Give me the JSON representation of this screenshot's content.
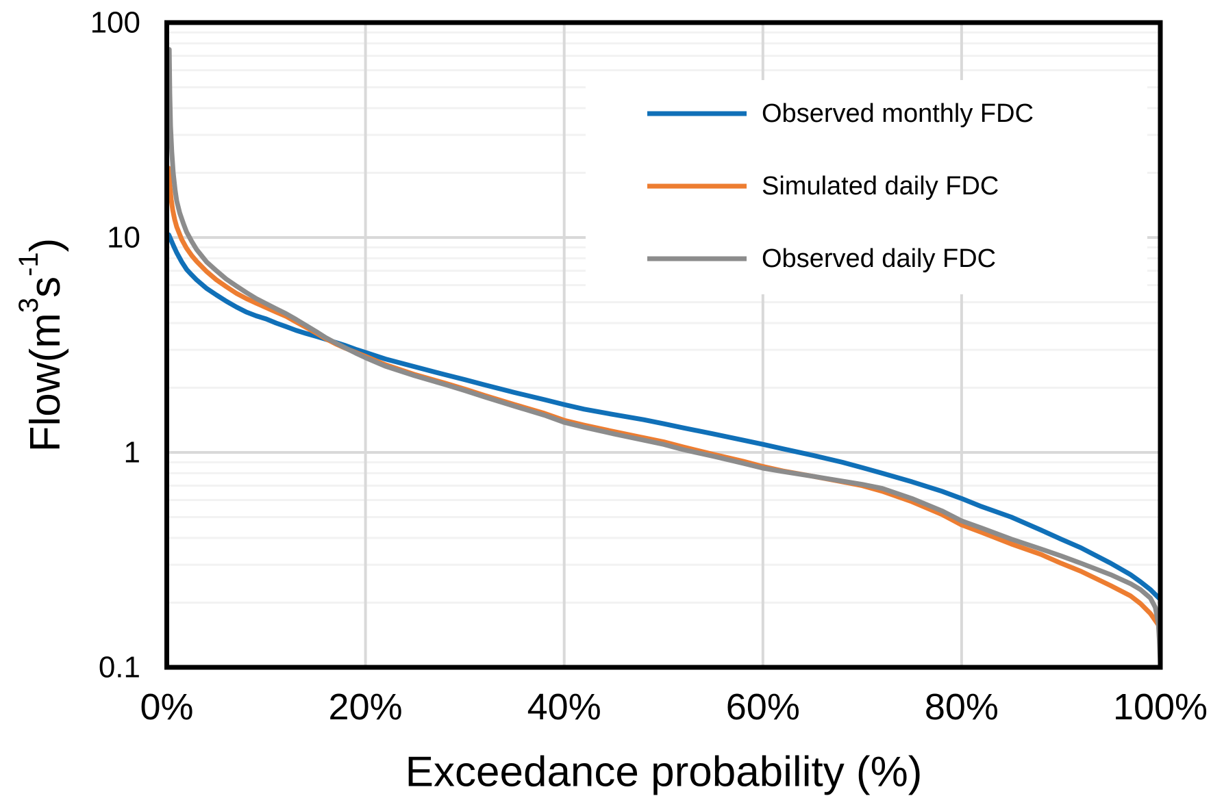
{
  "figure": {
    "background": "#FFFFFF",
    "frame_color": "#000000"
  },
  "chart_data": {
    "type": "line",
    "title": "",
    "x_axis": {
      "title": "Exceedance probability (%)",
      "ticks": [
        "0%",
        "20%",
        "40%",
        "60%",
        "80%",
        "100%"
      ],
      "tick_values": [
        0,
        20,
        40,
        60,
        80,
        100
      ],
      "range": [
        0,
        100
      ],
      "scale": "linear"
    },
    "y_axis": {
      "title": "Flow(m³s⁻¹)",
      "title_parts": [
        {
          "text": "Flow(m",
          "sup": false
        },
        {
          "text": "3",
          "sup": true
        },
        {
          "text": "s",
          "sup": false
        },
        {
          "text": "-1",
          "sup": true
        },
        {
          "text": ")",
          "sup": false
        }
      ],
      "ticks": [
        "100",
        "10",
        "1",
        "0.1"
      ],
      "tick_values": [
        100,
        10,
        1,
        0.1
      ],
      "range": [
        0.1,
        100
      ],
      "scale": "log",
      "minor_gridlines": true
    },
    "grid": {
      "minor_color": "#F2F2F2",
      "major_color": "#D9D9D9",
      "grid_on": true
    },
    "legend": {
      "position": "inside-top-right",
      "background": "#FFFFFF"
    },
    "series": [
      {
        "name": "Observed monthly FDC",
        "color": "#1070B8",
        "points": [
          [
            0.2,
            10.3
          ],
          [
            0.4,
            9.8
          ],
          [
            0.7,
            9.1
          ],
          [
            1,
            8.5
          ],
          [
            1.5,
            7.7
          ],
          [
            2,
            7.1
          ],
          [
            2.5,
            6.7
          ],
          [
            3,
            6.35
          ],
          [
            4,
            5.8
          ],
          [
            5,
            5.4
          ],
          [
            6,
            5.05
          ],
          [
            7,
            4.75
          ],
          [
            8,
            4.5
          ],
          [
            9,
            4.32
          ],
          [
            10,
            4.18
          ],
          [
            11,
            4.0
          ],
          [
            12,
            3.85
          ],
          [
            13,
            3.7
          ],
          [
            14,
            3.58
          ],
          [
            15,
            3.47
          ],
          [
            16,
            3.36
          ],
          [
            17,
            3.25
          ],
          [
            18,
            3.14
          ],
          [
            19,
            3.02
          ],
          [
            20,
            2.92
          ],
          [
            22,
            2.72
          ],
          [
            25,
            2.5
          ],
          [
            28,
            2.3
          ],
          [
            30,
            2.18
          ],
          [
            32,
            2.06
          ],
          [
            35,
            1.9
          ],
          [
            38,
            1.76
          ],
          [
            40,
            1.67
          ],
          [
            42,
            1.59
          ],
          [
            45,
            1.5
          ],
          [
            48,
            1.42
          ],
          [
            50,
            1.36
          ],
          [
            52,
            1.3
          ],
          [
            55,
            1.22
          ],
          [
            58,
            1.14
          ],
          [
            60,
            1.09
          ],
          [
            62,
            1.04
          ],
          [
            65,
            0.97
          ],
          [
            68,
            0.9
          ],
          [
            70,
            0.85
          ],
          [
            72,
            0.8
          ],
          [
            75,
            0.73
          ],
          [
            78,
            0.66
          ],
          [
            80,
            0.61
          ],
          [
            82,
            0.56
          ],
          [
            85,
            0.5
          ],
          [
            88,
            0.435
          ],
          [
            90,
            0.395
          ],
          [
            92,
            0.36
          ],
          [
            95,
            0.305
          ],
          [
            97,
            0.27
          ],
          [
            98,
            0.25
          ],
          [
            99,
            0.23
          ],
          [
            100,
            0.207
          ]
        ]
      },
      {
        "name": "Simulated daily FDC",
        "color": "#ED7D31",
        "points": [
          [
            0.2,
            21
          ],
          [
            0.3,
            17.5
          ],
          [
            0.45,
            15
          ],
          [
            0.6,
            13.4
          ],
          [
            0.8,
            12.1
          ],
          [
            1,
            11.2
          ],
          [
            1.5,
            9.8
          ],
          [
            2,
            8.9
          ],
          [
            2.5,
            8.25
          ],
          [
            3,
            7.75
          ],
          [
            4,
            6.95
          ],
          [
            5,
            6.35
          ],
          [
            6,
            5.9
          ],
          [
            7,
            5.5
          ],
          [
            8,
            5.2
          ],
          [
            9,
            4.95
          ],
          [
            10,
            4.72
          ],
          [
            11,
            4.5
          ],
          [
            12,
            4.3
          ],
          [
            13,
            4.05
          ],
          [
            14,
            3.82
          ],
          [
            15,
            3.6
          ],
          [
            16,
            3.38
          ],
          [
            17,
            3.2
          ],
          [
            18,
            3.05
          ],
          [
            19,
            2.92
          ],
          [
            20,
            2.8
          ],
          [
            22,
            2.56
          ],
          [
            25,
            2.3
          ],
          [
            28,
            2.1
          ],
          [
            30,
            1.97
          ],
          [
            32,
            1.84
          ],
          [
            35,
            1.67
          ],
          [
            38,
            1.52
          ],
          [
            40,
            1.41
          ],
          [
            42,
            1.34
          ],
          [
            45,
            1.25
          ],
          [
            48,
            1.17
          ],
          [
            50,
            1.12
          ],
          [
            52,
            1.06
          ],
          [
            55,
            0.98
          ],
          [
            58,
            0.91
          ],
          [
            60,
            0.86
          ],
          [
            62,
            0.82
          ],
          [
            65,
            0.775
          ],
          [
            68,
            0.73
          ],
          [
            70,
            0.7
          ],
          [
            72,
            0.66
          ],
          [
            75,
            0.59
          ],
          [
            78,
            0.515
          ],
          [
            80,
            0.46
          ],
          [
            82,
            0.425
          ],
          [
            85,
            0.375
          ],
          [
            88,
            0.335
          ],
          [
            90,
            0.305
          ],
          [
            92,
            0.28
          ],
          [
            95,
            0.24
          ],
          [
            97,
            0.215
          ],
          [
            98,
            0.198
          ],
          [
            99,
            0.178
          ],
          [
            100,
            0.153
          ]
        ]
      },
      {
        "name": "Observed daily FDC",
        "color": "#8C8C8C",
        "points": [
          [
            0.25,
            75
          ],
          [
            0.3,
            47
          ],
          [
            0.38,
            33
          ],
          [
            0.5,
            25
          ],
          [
            0.65,
            20
          ],
          [
            0.85,
            16.5
          ],
          [
            1,
            14.8
          ],
          [
            1.3,
            13
          ],
          [
            1.7,
            11.5
          ],
          [
            2,
            10.6
          ],
          [
            2.5,
            9.6
          ],
          [
            3,
            8.8
          ],
          [
            4,
            7.7
          ],
          [
            5,
            7.0
          ],
          [
            6,
            6.4
          ],
          [
            7,
            5.95
          ],
          [
            8,
            5.55
          ],
          [
            9,
            5.2
          ],
          [
            10,
            4.92
          ],
          [
            11,
            4.66
          ],
          [
            12,
            4.42
          ],
          [
            13,
            4.16
          ],
          [
            14,
            3.9
          ],
          [
            15,
            3.66
          ],
          [
            16,
            3.42
          ],
          [
            17,
            3.23
          ],
          [
            18,
            3.06
          ],
          [
            19,
            2.9
          ],
          [
            20,
            2.76
          ],
          [
            22,
            2.52
          ],
          [
            25,
            2.27
          ],
          [
            28,
            2.07
          ],
          [
            30,
            1.94
          ],
          [
            32,
            1.81
          ],
          [
            35,
            1.64
          ],
          [
            38,
            1.49
          ],
          [
            40,
            1.38
          ],
          [
            42,
            1.31
          ],
          [
            45,
            1.22
          ],
          [
            48,
            1.14
          ],
          [
            50,
            1.09
          ],
          [
            52,
            1.03
          ],
          [
            55,
            0.96
          ],
          [
            58,
            0.89
          ],
          [
            60,
            0.845
          ],
          [
            62,
            0.815
          ],
          [
            65,
            0.775
          ],
          [
            68,
            0.735
          ],
          [
            70,
            0.71
          ],
          [
            72,
            0.68
          ],
          [
            75,
            0.61
          ],
          [
            78,
            0.535
          ],
          [
            80,
            0.48
          ],
          [
            82,
            0.445
          ],
          [
            85,
            0.395
          ],
          [
            88,
            0.355
          ],
          [
            90,
            0.33
          ],
          [
            92,
            0.305
          ],
          [
            95,
            0.27
          ],
          [
            97,
            0.245
          ],
          [
            98,
            0.23
          ],
          [
            99,
            0.21
          ],
          [
            99.5,
            0.19
          ],
          [
            99.8,
            0.16
          ],
          [
            99.9,
            0.135
          ],
          [
            100,
            0.104
          ]
        ]
      }
    ]
  }
}
